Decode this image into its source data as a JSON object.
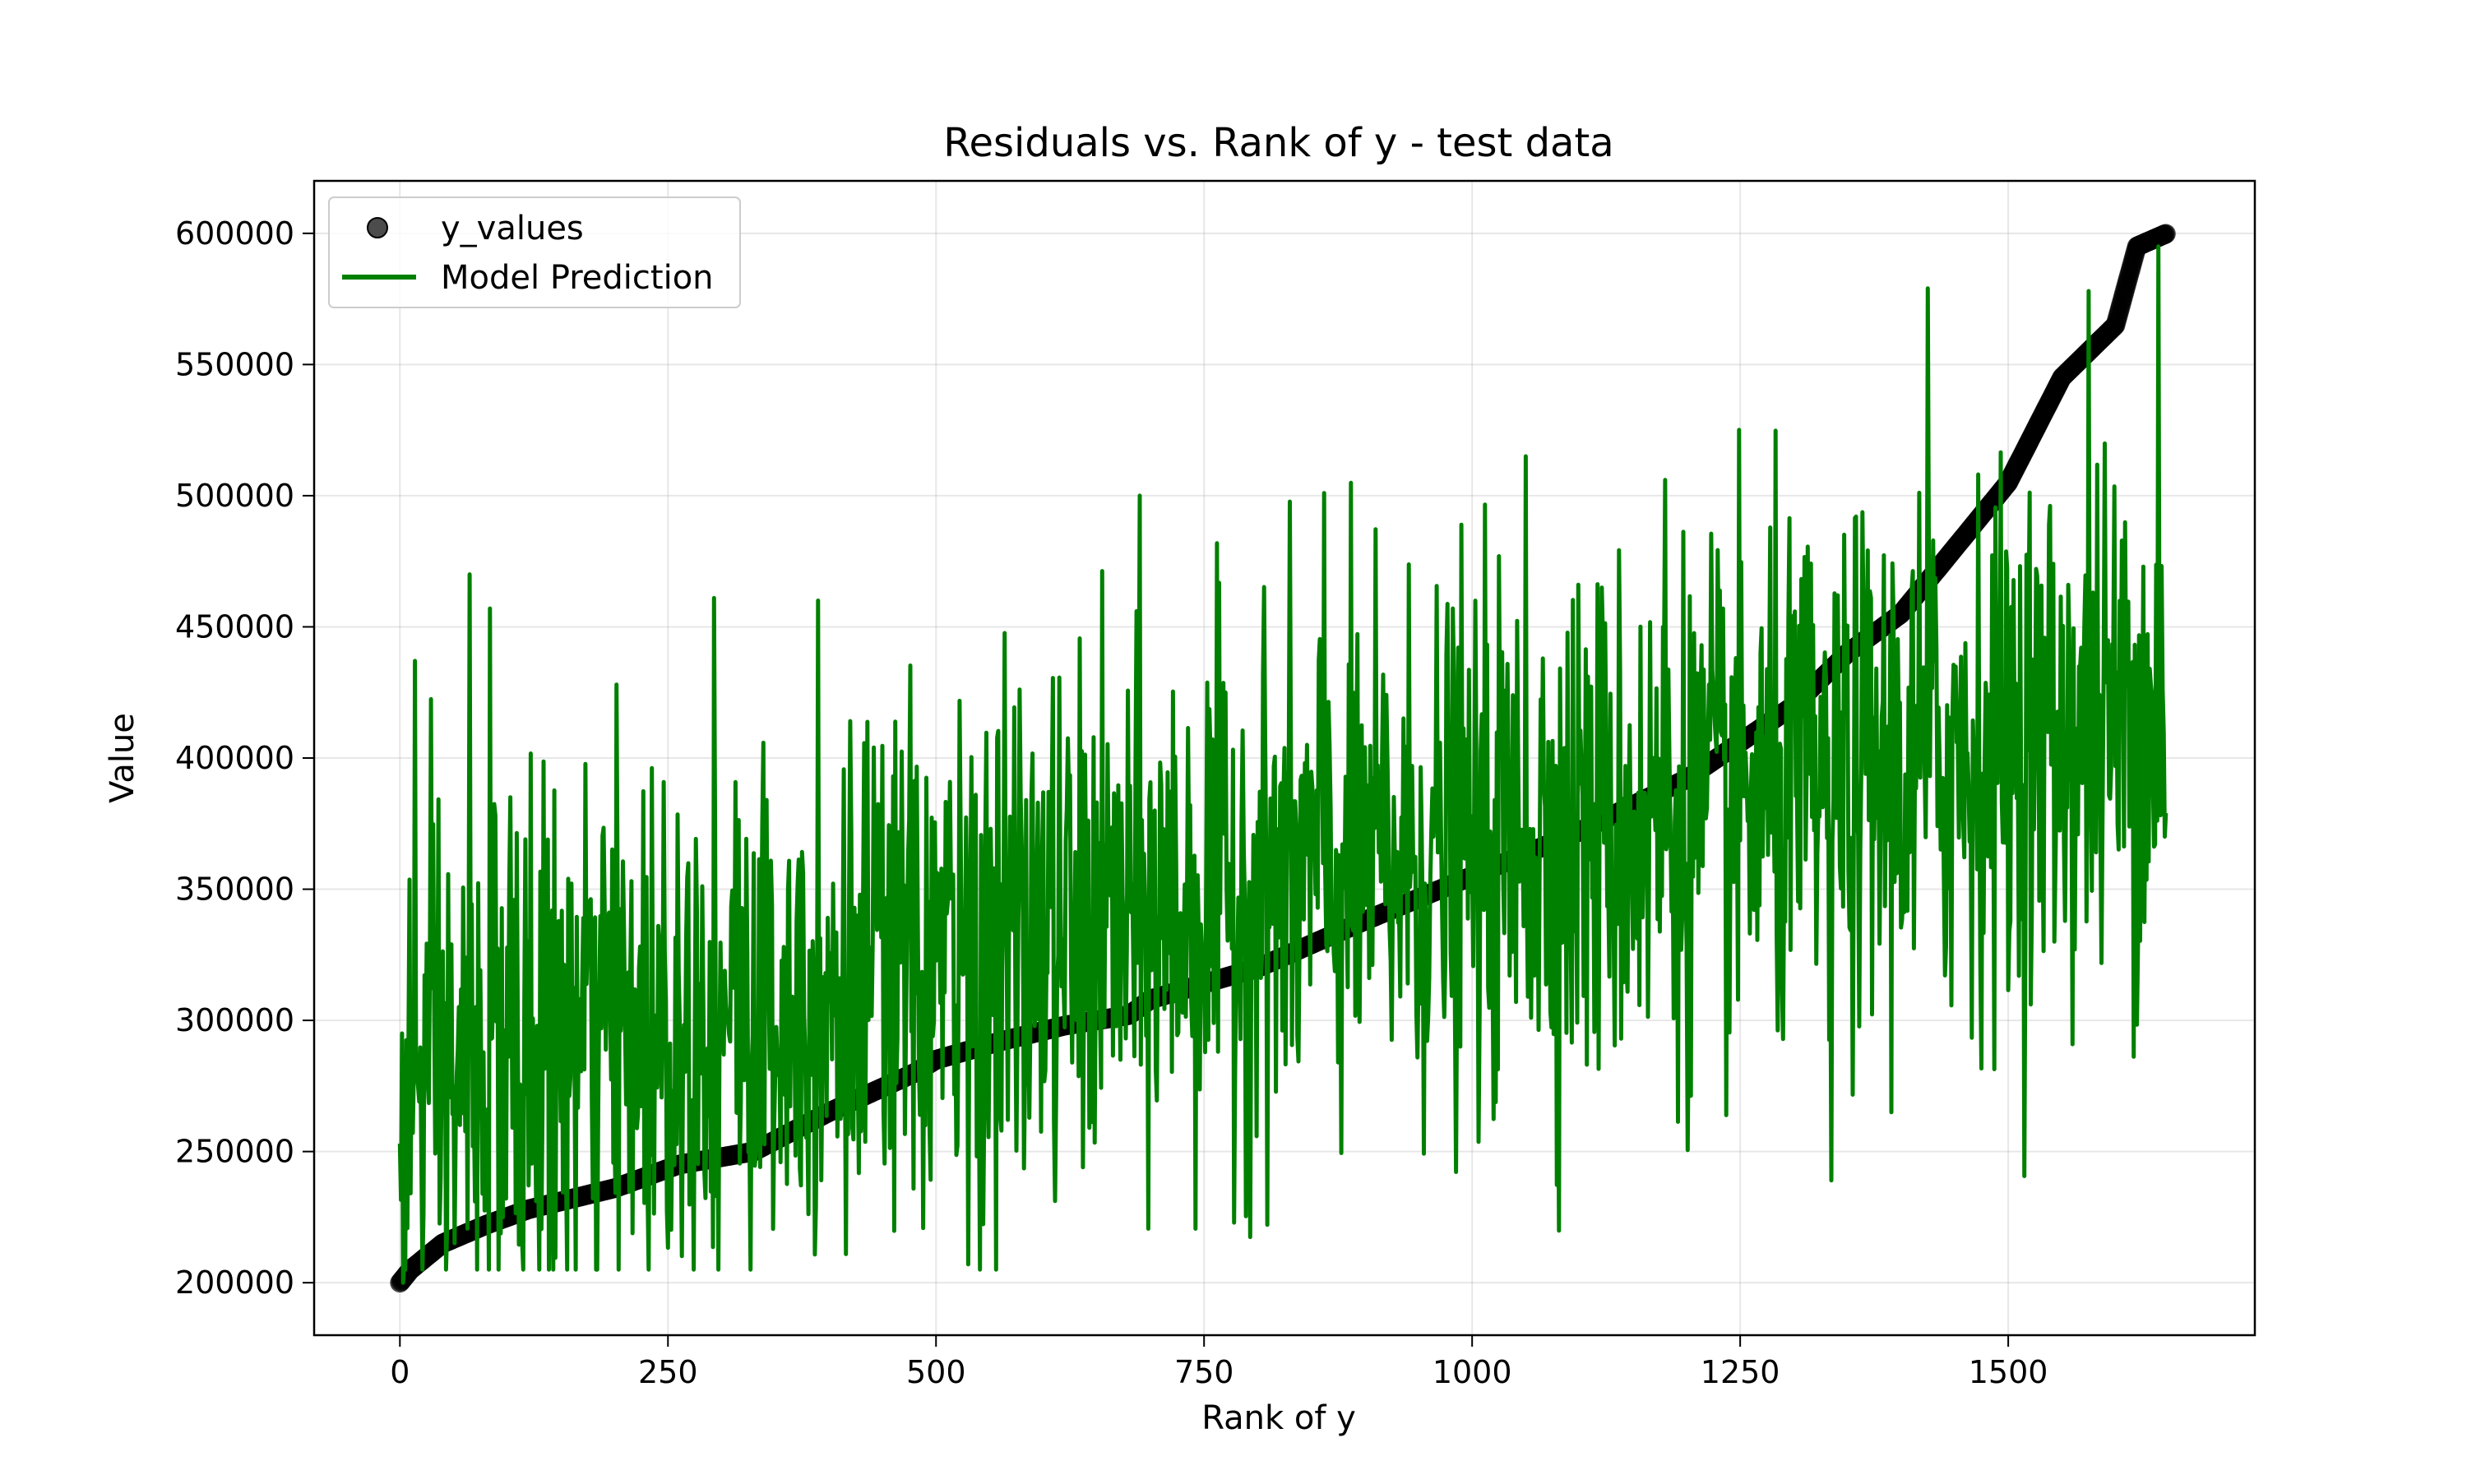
{
  "chart_data": {
    "type": "scatter",
    "title": "Residuals vs. Rank of y - test data",
    "xlabel": "Rank of y",
    "ylabel": "Value",
    "xlim": [
      -80,
      1730
    ],
    "ylim": [
      180000,
      620000
    ],
    "xticks": [
      0,
      250,
      500,
      750,
      1000,
      1250,
      1500
    ],
    "yticks": [
      200000,
      250000,
      300000,
      350000,
      400000,
      450000,
      500000,
      550000,
      600000
    ],
    "xtick_labels": [
      "0",
      "250",
      "500",
      "750",
      "1000",
      "1250",
      "1500"
    ],
    "ytick_labels": [
      "200000",
      "250000",
      "300000",
      "350000",
      "400000",
      "450000",
      "500000",
      "550000",
      "600000"
    ],
    "grid": true,
    "legend_position": "top-left",
    "n_points": 1648,
    "series": [
      {
        "name": "y_values",
        "kind": "scatter",
        "color": "#000000",
        "marker": "circle",
        "trend_knots": {
          "x": [
            0,
            10,
            40,
            80,
            120,
            200,
            260,
            330,
            400,
            480,
            500,
            560,
            620,
            680,
            700,
            800,
            900,
            1000,
            1100,
            1200,
            1300,
            1350,
            1400,
            1450,
            1500,
            1550,
            1600,
            1620,
            1648
          ],
          "y": [
            200000,
            205000,
            215000,
            222000,
            228000,
            236000,
            245000,
            250000,
            265000,
            280000,
            285000,
            292000,
            298000,
            302000,
            308000,
            320000,
            338000,
            355000,
            372000,
            392000,
            420000,
            440000,
            455000,
            480000,
            505000,
            545000,
            565000,
            595000,
            600000
          ]
        }
      },
      {
        "name": "Model Prediction",
        "kind": "line",
        "color": "#008000",
        "trend_knots": {
          "x": [
            0,
            200,
            400,
            600,
            800,
            1000,
            1200,
            1400,
            1648
          ],
          "y": [
            270000,
            295000,
            310000,
            330000,
            350000,
            365000,
            378000,
            395000,
            420000
          ]
        },
        "noise_sd": 50000,
        "peaks": [
          {
            "x": 2,
            "y": 295000
          },
          {
            "x": 3,
            "y": 200000
          },
          {
            "x": 14,
            "y": 437000
          },
          {
            "x": 65,
            "y": 470000
          },
          {
            "x": 84,
            "y": 457000
          },
          {
            "x": 293,
            "y": 461000
          },
          {
            "x": 390,
            "y": 460000
          },
          {
            "x": 530,
            "y": 207000
          },
          {
            "x": 690,
            "y": 500000
          },
          {
            "x": 862,
            "y": 501000
          },
          {
            "x": 1050,
            "y": 515000
          },
          {
            "x": 1180,
            "y": 506000
          },
          {
            "x": 1335,
            "y": 239000
          },
          {
            "x": 1425,
            "y": 579000
          },
          {
            "x": 1575,
            "y": 578000
          },
          {
            "x": 1640,
            "y": 595000
          },
          {
            "x": 1645,
            "y": 410000
          }
        ]
      }
    ]
  }
}
